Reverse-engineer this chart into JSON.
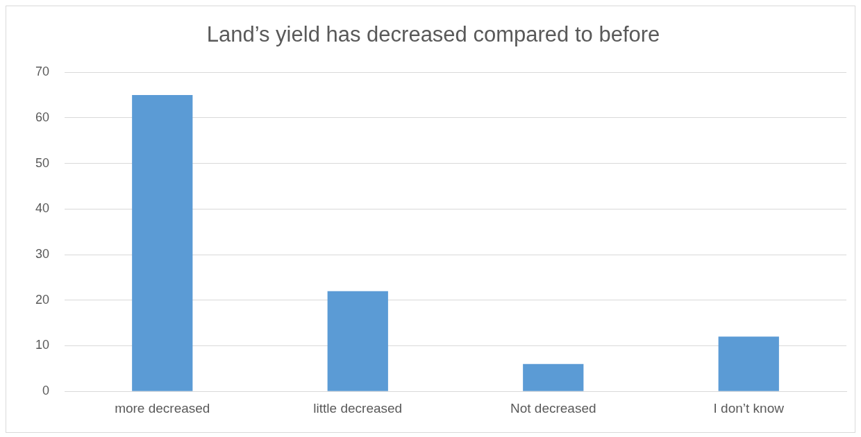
{
  "chart_data": {
    "type": "bar",
    "title": "Land’s yield has decreased compared to before",
    "categories": [
      "more decreased",
      "little decreased",
      "Not decreased",
      "I don’t know"
    ],
    "values": [
      65,
      22,
      6,
      12
    ],
    "color": "#5b9bd5",
    "ylim": [
      0,
      70
    ],
    "yticks": [
      0,
      10,
      20,
      30,
      40,
      50,
      60,
      70
    ],
    "grid": "y",
    "legend": false
  }
}
